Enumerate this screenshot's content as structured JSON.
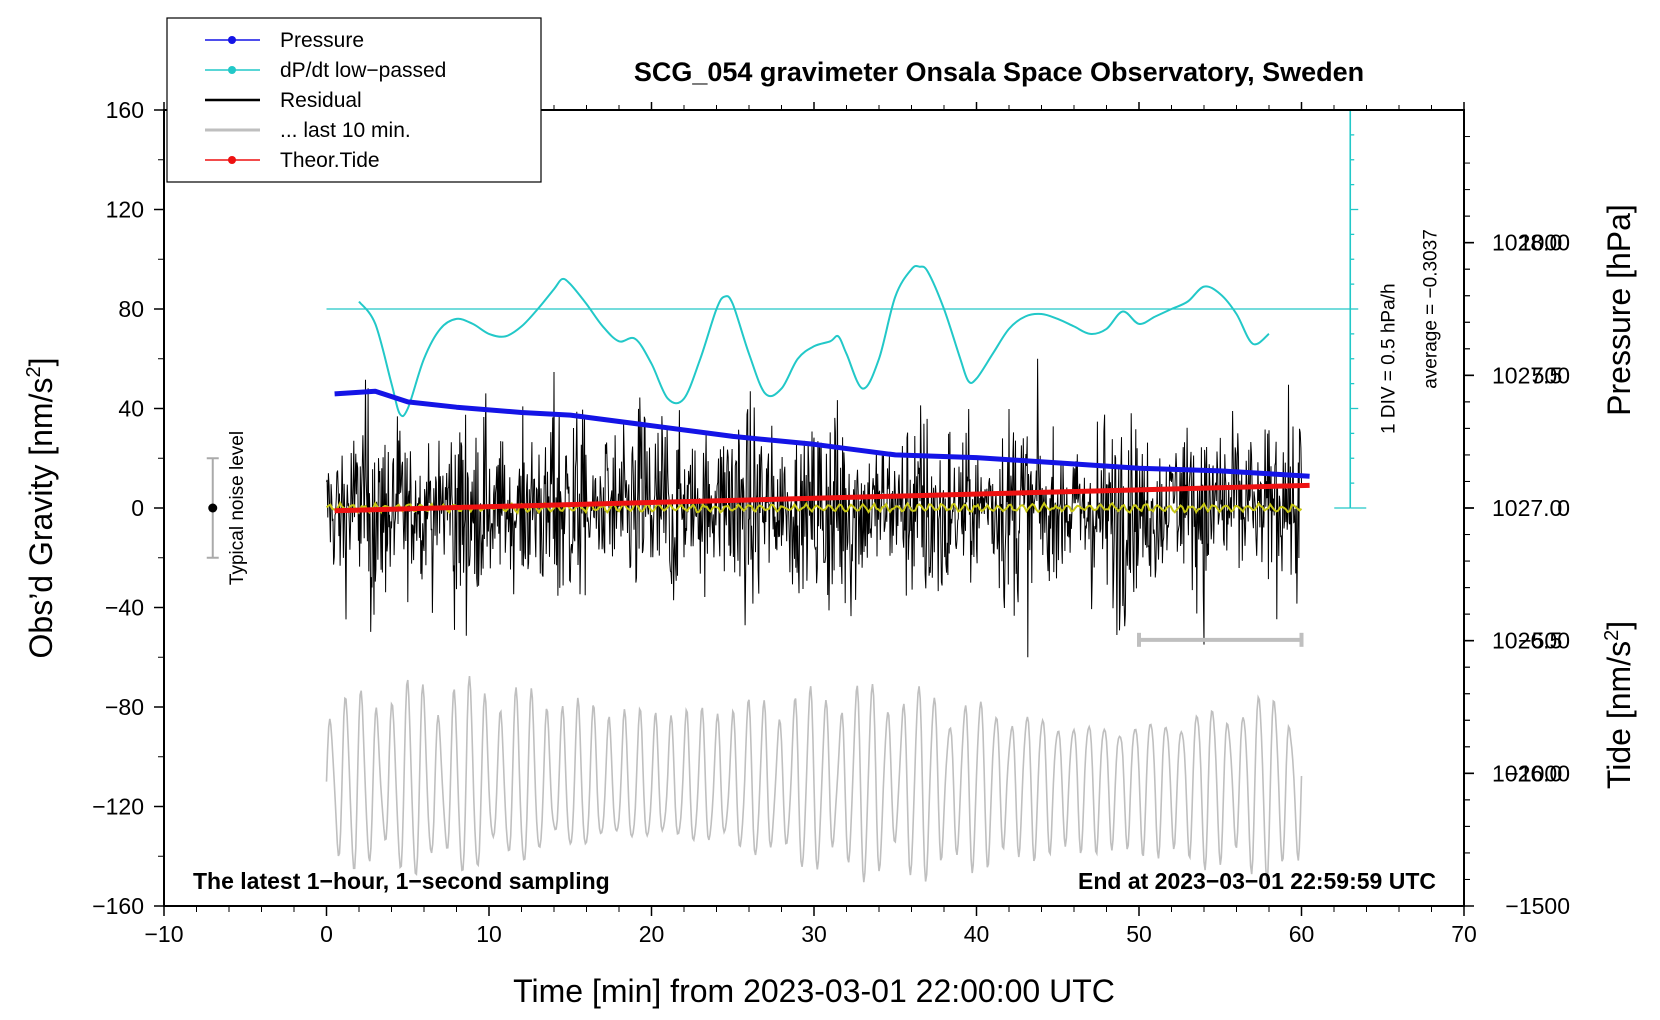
{
  "chart_data": {
    "type": "line",
    "title": "SCG_054 gravimeter Onsala Space Observatory, Sweden",
    "xlabel": "Time [min] from 2023-03-01 22:00:00 UTC",
    "ylabel_left_main": "Obs’d Gravity [nm/s",
    "ylabel_left_sup": "2",
    "ylabel_left_end": "]",
    "ylabel_right_top": "Pressure [hPa]",
    "ylabel_right_bottom_main": "Tide [nm/s",
    "ylabel_right_bottom_sup": "2",
    "ylabel_right_bottom_end": "]",
    "xlim": [
      -10,
      70
    ],
    "ylim": [
      -160,
      160
    ],
    "pressure_axis_range": [
      1025.5,
      1028.5
    ],
    "tide_axis_range": [
      -1500,
      1500
    ],
    "x_ticks": [
      "−10",
      "0",
      "10",
      "20",
      "30",
      "40",
      "50",
      "60",
      "70"
    ],
    "x_tick_values": [
      -10,
      0,
      10,
      20,
      30,
      40,
      50,
      60,
      70
    ],
    "y_ticks": [
      "160",
      "120",
      "80",
      "40",
      "0",
      "−40",
      "−80",
      "−120",
      "−160"
    ],
    "y_tick_values": [
      160,
      120,
      80,
      40,
      0,
      -40,
      -80,
      -120,
      -160
    ],
    "pressure_ticks": [
      "1028.0",
      "1027.5",
      "1027.0",
      "1026.5",
      "1026.0"
    ],
    "pressure_tick_values": [
      1028.0,
      1027.5,
      1027.0,
      1026.5,
      1026.0
    ],
    "tide_ticks": [
      "1000",
      "500",
      "0",
      "−500",
      "−1000",
      "−1500"
    ],
    "tide_tick_values": [
      1000,
      500,
      0,
      -500,
      -1000,
      -1500
    ],
    "legend": [
      "Pressure",
      "dP/dt low−passed",
      "Residual",
      "... last 10 min.",
      "Theor.Tide"
    ],
    "legend_location": "top-left",
    "series": [
      {
        "name": "Pressure",
        "unit": "hPa",
        "x": [
          0.5,
          3,
          5,
          8,
          12,
          15,
          20,
          25,
          30,
          35,
          40,
          45,
          50,
          55,
          60.5
        ],
        "values": [
          1027.43,
          1027.44,
          1027.4,
          1027.38,
          1027.36,
          1027.35,
          1027.31,
          1027.27,
          1027.24,
          1027.2,
          1027.19,
          1027.17,
          1027.15,
          1027.14,
          1027.12
        ]
      },
      {
        "name": "dP/dt low−passed",
        "unit": "nm/s2 plot units",
        "x": [
          2,
          3,
          4,
          4.5,
          5,
          6,
          7,
          8,
          9,
          10,
          11,
          12,
          13,
          14,
          14.5,
          15,
          16,
          17,
          18,
          19,
          20,
          21,
          22,
          23,
          24,
          24.5,
          25,
          26,
          27,
          28,
          29,
          30,
          31,
          31.5,
          32,
          33,
          34,
          35,
          36,
          36.5,
          37,
          38,
          39,
          39.5,
          40,
          41,
          42,
          43,
          44,
          45,
          46,
          47,
          48,
          49,
          50,
          51,
          52,
          53,
          54,
          55,
          56,
          57,
          58
        ],
        "values": [
          83,
          74,
          50,
          38,
          40,
          60,
          72,
          76,
          74,
          70,
          69,
          73,
          80,
          88,
          92,
          90,
          82,
          73,
          67,
          68,
          58,
          44,
          44,
          60,
          80,
          85,
          82,
          62,
          46,
          48,
          60,
          65,
          67,
          69,
          62,
          48,
          60,
          85,
          96,
          97,
          95,
          80,
          60,
          51,
          52,
          62,
          72,
          77,
          78,
          76,
          73,
          70,
          72,
          79,
          74,
          77,
          80,
          83,
          89,
          86,
          78,
          66,
          70
        ]
      },
      {
        "name": "Residual",
        "unit": "nm/s2",
        "x_range": [
          0,
          60
        ],
        "typical_amplitude": 20,
        "peak_range": [
          -60,
          60
        ]
      },
      {
        "name": "... last 10 min.",
        "unit": "nm/s2 (offset -100)",
        "x_range": [
          0,
          60
        ],
        "amplitude_range": [
          -150,
          -70
        ]
      },
      {
        "name": "Theor.Tide",
        "unit": "nm/s2",
        "x": [
          0.5,
          60.5
        ],
        "values": [
          -10,
          85
        ]
      }
    ],
    "pressure_scale_bar": {
      "label": "1 DIV = 0.5 hPa/h",
      "average_label": "average = −0.3037",
      "x": 63,
      "y_from": 0,
      "y_to": 160,
      "baseline_y": 80
    },
    "noise_bar": {
      "label": "Typical noise level",
      "x": -7,
      "y_from": -20,
      "y_to": 20
    },
    "window_bar": {
      "x_from": 50,
      "x_to": 60,
      "y": -53
    },
    "footer_left": "The latest 1−hour, 1−second sampling",
    "footer_right": "End at 2023−03−01 22:59:59 UTC"
  },
  "colors": {
    "pressure": "#1414e6",
    "dpdt": "#22c8c8",
    "residual": "#000000",
    "last10": "#bfbfbf",
    "tide": "#ee1111",
    "smoothed": "#c8c814",
    "axis": "#000000"
  }
}
